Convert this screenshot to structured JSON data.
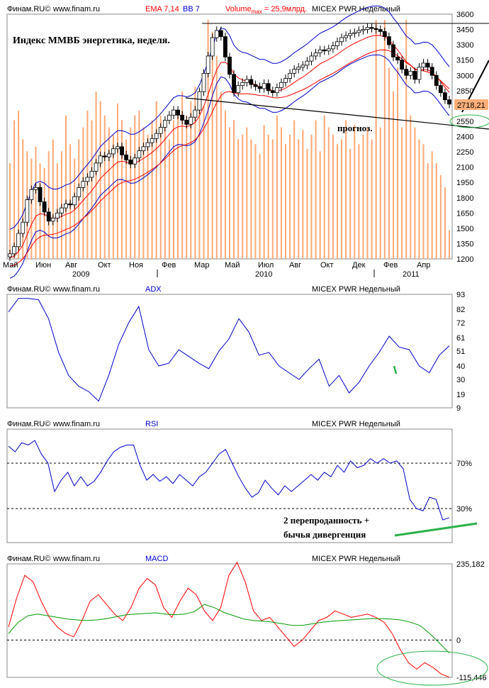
{
  "header": {
    "brand": "Финам.RU©",
    "site": "www.finam.ru",
    "instrument": "MICEX PWR Недельный"
  },
  "colors": {
    "up_candle": "#ffffff",
    "down_candle": "#000000",
    "ema": "#ff0000",
    "bollinger": "#0000cc",
    "volume": "#ffa874",
    "adx": "#0000cc",
    "rsi": "#0000cc",
    "macd": "#ff0000",
    "signal": "#009900",
    "annotation_green": "#2db24b",
    "price_box": "#ffb07a"
  },
  "chart_data": [
    {
      "type": "candlestick",
      "panel": "price",
      "legend": {
        "ema": "EMA 7,14",
        "bb": "BB 7",
        "volume_prefix": "Volume",
        "volume_sub": "max",
        "volume_value": " = 25,9млрд."
      },
      "title": "Индекс ММВБ энергетика, неделя.",
      "annotation_forecast": "прогноз.",
      "last_price_label": "2718,21",
      "ylim": [
        1200,
        3600
      ],
      "y_ticks": [
        "3600",
        "3450",
        "3300",
        "3150",
        "3000",
        "2850",
        "2700",
        "2550",
        "2400",
        "2250",
        "2100",
        "1950",
        "1800",
        "1650",
        "1500",
        "1350",
        "1200"
      ],
      "x_month_labels": [
        "Май",
        "Июн",
        "Авг",
        "Окт",
        "Ноя",
        "Фев",
        "Мар",
        "Май",
        "Июл",
        "Авг",
        "Окт",
        "Дек",
        "Фев",
        "Апр"
      ],
      "x_year_labels": [
        "2009",
        "2010",
        "2011"
      ],
      "close": [
        1250,
        1320,
        1450,
        1560,
        1780,
        1880,
        1900,
        1760,
        1660,
        1570,
        1600,
        1650,
        1700,
        1740,
        1730,
        1810,
        1900,
        1960,
        2000,
        2060,
        2140,
        2210,
        2200,
        2230,
        2280,
        2300,
        2220,
        2170,
        2130,
        2190,
        2260,
        2300,
        2340,
        2380,
        2430,
        2490,
        2560,
        2610,
        2660,
        2610,
        2560,
        2520,
        2590,
        2660,
        2840,
        3020,
        3190,
        3370,
        3440,
        3380,
        3180,
        3010,
        2830,
        2900,
        2930,
        2960,
        2910,
        2890,
        2870,
        2920,
        2850,
        2830,
        2880,
        2930,
        2970,
        3020,
        3060,
        3080,
        3100,
        3140,
        3190,
        3220,
        3250,
        3240,
        3260,
        3290,
        3330,
        3370,
        3390,
        3410,
        3420,
        3440,
        3450,
        3470,
        3460,
        3450,
        3430,
        3380,
        3300,
        3180,
        3150,
        3060,
        3000,
        3040,
        2960,
        3080,
        3120,
        3080,
        3000,
        2900,
        2830,
        2760,
        2718
      ],
      "volume_pct": [
        40,
        58,
        62,
        50,
        45,
        42,
        47,
        40,
        38,
        45,
        50,
        40,
        45,
        60,
        48,
        42,
        50,
        55,
        62,
        58,
        70,
        66,
        60,
        55,
        52,
        65,
        58,
        50,
        55,
        60,
        62,
        55,
        52,
        58,
        66,
        60,
        56,
        50,
        58,
        62,
        70,
        60,
        66,
        72,
        68,
        64,
        100,
        95,
        85,
        70,
        62,
        55,
        58,
        50,
        52,
        55,
        50,
        48,
        44,
        56,
        52,
        50,
        60,
        55,
        48,
        52,
        58,
        50,
        54,
        46,
        52,
        58,
        45,
        60,
        55,
        52,
        48,
        50,
        58,
        46,
        56,
        48,
        52,
        55,
        50,
        100,
        55,
        100,
        80,
        70,
        80,
        55,
        100,
        60,
        55,
        50,
        48,
        40,
        45,
        40,
        35,
        30,
        12
      ],
      "ema_fast_shift": -40,
      "ema_slow_shift": -120,
      "bb_width": 180
    },
    {
      "type": "line",
      "panel": "adx",
      "series": [
        {
          "name": "ADX",
          "values": [
            80,
            90,
            90,
            89,
            75,
            50,
            33,
            25,
            21,
            14,
            33,
            56,
            72,
            84,
            52,
            40,
            42,
            52,
            47,
            42,
            38,
            51,
            60,
            75,
            65,
            48,
            50,
            40,
            35,
            30,
            38,
            45,
            25,
            33,
            20,
            28,
            40,
            50,
            62,
            54,
            52,
            40,
            35,
            48,
            55
          ]
        }
      ],
      "ylim": [
        9,
        93
      ],
      "y_ticks": [
        "93",
        "82",
        "72",
        "61",
        "51",
        "40",
        "30",
        "19",
        "9"
      ]
    },
    {
      "type": "line",
      "panel": "rsi",
      "series": [
        {
          "name": "RSI",
          "values": [
            85,
            80,
            88,
            86,
            90,
            78,
            70,
            45,
            55,
            62,
            50,
            58,
            50,
            54,
            62,
            72,
            80,
            84,
            86,
            86,
            68,
            55,
            60,
            54,
            58,
            52,
            60,
            55,
            50,
            58,
            62,
            70,
            78,
            82,
            70,
            58,
            48,
            40,
            44,
            55,
            48,
            42,
            50,
            45,
            50,
            55,
            60,
            55,
            62,
            58,
            68,
            62,
            72,
            66,
            68,
            74,
            70,
            74,
            70,
            72,
            65,
            38,
            30,
            28,
            40,
            38,
            20,
            22
          ],
          "name_unused": ""
        }
      ],
      "ylim": [
        0,
        100
      ],
      "y_ticks": [
        "70%",
        "30%"
      ],
      "annotation_line1": "2 перепроданность +",
      "annotation_line2": "бычья дивергенция"
    },
    {
      "type": "line",
      "panel": "macd",
      "series": [
        {
          "name": "MACD",
          "values": [
            40,
            130,
            200,
            180,
            120,
            70,
            40,
            20,
            10,
            60,
            120,
            140,
            110,
            80,
            60,
            100,
            160,
            190,
            170,
            100,
            70,
            120,
            160,
            140,
            90,
            60,
            100,
            200,
            240,
            180,
            90,
            60,
            70,
            40,
            10,
            -20,
            0,
            30,
            60,
            70,
            90,
            80,
            70,
            75,
            80,
            70,
            55,
            20,
            -30,
            -70,
            -90,
            -70,
            -85,
            -105,
            -115
          ]
        },
        {
          "name": "Signal",
          "values": [
            20,
            55,
            75,
            80,
            75,
            70,
            65,
            62,
            60,
            62,
            66,
            72,
            78,
            80,
            82,
            84,
            80,
            78,
            80,
            88,
            110,
            100,
            85,
            75,
            65,
            60,
            58,
            55,
            50,
            45,
            45,
            50,
            55,
            58,
            60,
            62,
            64,
            66,
            66,
            65,
            62,
            55,
            45,
            20,
            -10,
            -40
          ]
        }
      ],
      "ylim": [
        -115.446,
        235.182
      ],
      "y_ticks": [
        "235,182",
        "0",
        "-115,446"
      ]
    }
  ]
}
